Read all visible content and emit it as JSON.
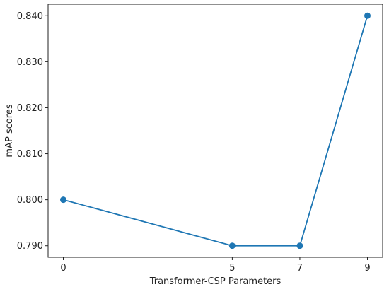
{
  "chart_data": {
    "type": "line",
    "x": [
      0,
      5,
      7,
      9
    ],
    "values": [
      0.8,
      0.79,
      0.79,
      0.84
    ],
    "color": "#1f77b4",
    "xlabel": "Transformer-CSP Parameters",
    "ylabel": "mAP scores",
    "xlim": [
      -0.45,
      9.45
    ],
    "ylim": [
      0.7875,
      0.8425
    ],
    "xticks": [
      0,
      5,
      7,
      9
    ],
    "yticks": [
      {
        "value": 0.79,
        "label": "0.790"
      },
      {
        "value": 0.8,
        "label": "0.800"
      },
      {
        "value": 0.81,
        "label": "0.810"
      },
      {
        "value": 0.82,
        "label": "0.820"
      },
      {
        "value": 0.83,
        "label": "0.830"
      },
      {
        "value": 0.84,
        "label": "0.840"
      }
    ]
  }
}
